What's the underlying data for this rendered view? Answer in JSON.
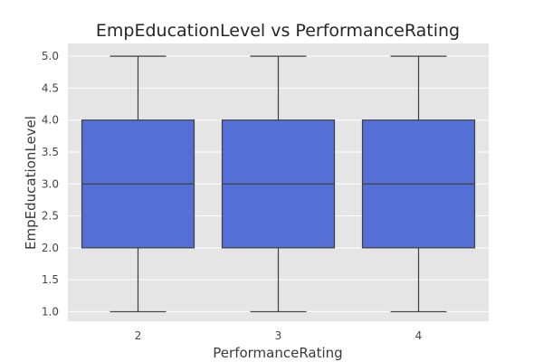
{
  "chart_data": {
    "type": "box",
    "title": "EmpEducationLevel vs PerformanceRating",
    "xlabel": "PerformanceRating",
    "ylabel": "EmpEducationLevel",
    "categories": [
      "2",
      "3",
      "4"
    ],
    "ylim": [
      0.85,
      5.2
    ],
    "yticks": [
      "1.0",
      "1.5",
      "2.0",
      "2.5",
      "3.0",
      "3.5",
      "4.0",
      "4.5",
      "5.0"
    ],
    "grid": true,
    "boxes": [
      {
        "category": "2",
        "min": 1.0,
        "q1": 2.0,
        "median": 3.0,
        "q3": 4.0,
        "max": 5.0
      },
      {
        "category": "3",
        "min": 1.0,
        "q1": 2.0,
        "median": 3.0,
        "q3": 4.0,
        "max": 5.0
      },
      {
        "category": "4",
        "min": 1.0,
        "q1": 2.0,
        "median": 3.0,
        "q3": 4.0,
        "max": 5.0
      }
    ],
    "colors": {
      "box": "#5470d6",
      "background": "#e5e5e5"
    }
  }
}
